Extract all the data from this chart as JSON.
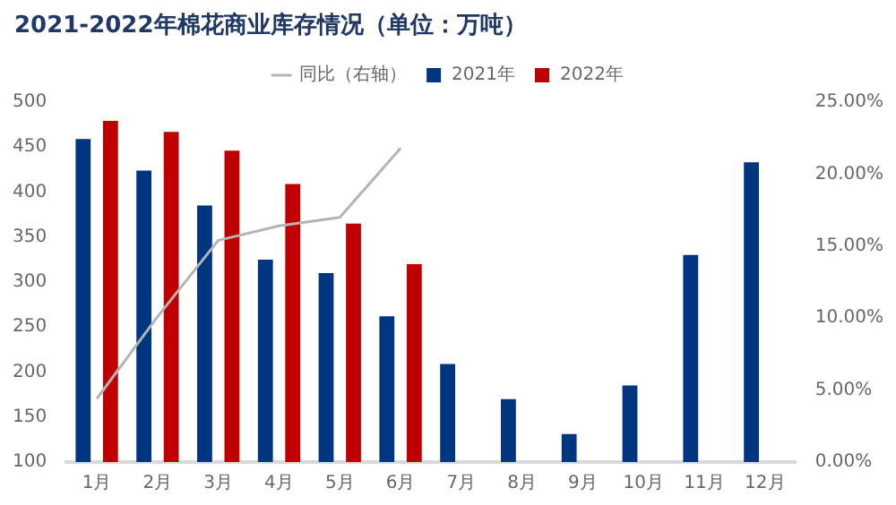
{
  "chart_data": {
    "type": "bar",
    "title": "2021-2022年棉花商业库存情况（单位：万吨）",
    "categories": [
      "1月",
      "2月",
      "3月",
      "4月",
      "5月",
      "6月",
      "7月",
      "8月",
      "9月",
      "10月",
      "11月",
      "12月"
    ],
    "series": [
      {
        "name": "2021年",
        "color": "#003580",
        "values": [
          459,
          424,
          385,
          325,
          310,
          262,
          209,
          170,
          131,
          185,
          330,
          433
        ]
      },
      {
        "name": "2022年",
        "color": "#c00000",
        "values": [
          479,
          467,
          446,
          409,
          365,
          320,
          null,
          null,
          null,
          null,
          null,
          null
        ]
      },
      {
        "name": "同比（右轴）",
        "type": "line",
        "axis": "y2",
        "color": "#b4b4b4",
        "values": [
          4.4,
          10.1,
          15.4,
          16.4,
          17.0,
          21.8,
          null,
          null,
          null,
          null,
          null,
          null
        ]
      }
    ],
    "ylim": [
      100,
      500
    ],
    "yticks": [
      100,
      150,
      200,
      250,
      300,
      350,
      400,
      450,
      500
    ],
    "y2lim": [
      0,
      25
    ],
    "y2ticks": [
      {
        "value": 0,
        "label": "0.00%"
      },
      {
        "value": 5,
        "label": "5.00%"
      },
      {
        "value": 10,
        "label": "10.00%"
      },
      {
        "value": 15,
        "label": "15.00%"
      },
      {
        "value": 20,
        "label": "20.00%"
      },
      {
        "value": 25,
        "label": "25.00%"
      }
    ],
    "legend": "top",
    "grid": false
  }
}
